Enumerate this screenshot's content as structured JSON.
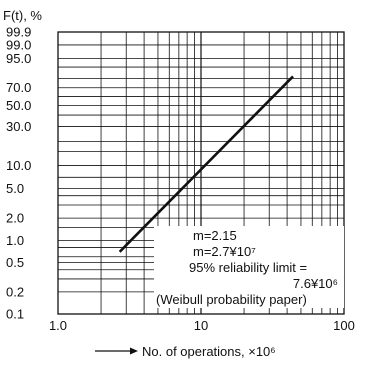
{
  "chart_data": {
    "type": "line",
    "title": "",
    "ylabel": "F(t), %",
    "xlabel": "No. of operations, ×10⁶",
    "x_scale": "log",
    "y_scale": "weibull",
    "xlim": [
      1,
      100
    ],
    "ylim": [
      0.1,
      99.9
    ],
    "grid": true,
    "x_ticks": [
      "1.0",
      "10",
      "100"
    ],
    "y_ticks": [
      "99.9",
      "99.0",
      "95.0",
      "70.0",
      "50.0",
      "30.0",
      "10.0",
      "5.0",
      "2.0",
      "1.0",
      "0.5",
      "0.2",
      "0.1"
    ],
    "series": [
      {
        "x": [
          2.7,
          44
        ],
        "y": [
          0.7,
          82
        ]
      }
    ],
    "annotations": [
      "m=2.15",
      "m=2.7¥10⁷",
      "95% reliability limit =",
      "7.6¥10⁶",
      "(Weibull probability paper)"
    ]
  }
}
